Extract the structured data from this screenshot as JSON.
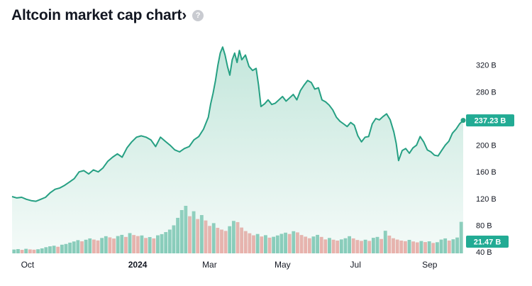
{
  "header": {
    "title": "Altcoin market cap chart›",
    "help_icon": "?"
  },
  "colors": {
    "line": "#26a083",
    "fill_top": "#b9e2d5",
    "fill_bottom": "#ffffff",
    "volume_up": "#7fc8b5",
    "volume_down": "#f0a9a5",
    "badge": "#22ab94"
  },
  "chart_data": {
    "type": "area",
    "title": "Altcoin market cap chart›",
    "x_labels": [
      {
        "text": "Oct",
        "bold": false,
        "date": "2023-10-01"
      },
      {
        "text": "2024",
        "bold": true,
        "date": "2024-01-01"
      },
      {
        "text": "Mar",
        "bold": false,
        "date": "2024-03-01"
      },
      {
        "text": "May",
        "bold": false,
        "date": "2024-05-01"
      },
      {
        "text": "Jul",
        "bold": false,
        "date": "2024-07-01"
      },
      {
        "text": "Sep",
        "bold": false,
        "date": "2024-09-01"
      }
    ],
    "y_ticks": [
      {
        "value": 320,
        "label": "320 B"
      },
      {
        "value": 280,
        "label": "280 B"
      },
      {
        "value": 240,
        "label": "240 B"
      },
      {
        "value": 200,
        "label": "200 B"
      },
      {
        "value": 160,
        "label": "160 B"
      },
      {
        "value": 120,
        "label": "120 B"
      },
      {
        "value": 80,
        "label": "80 B"
      },
      {
        "value": 40,
        "label": "40 B"
      }
    ],
    "y_range_billion_usd": [
      38,
      358
    ],
    "x_range": [
      "2023-09-18",
      "2024-09-29"
    ],
    "grid": false,
    "series": [
      {
        "values": [
          [
            "2023-09-18",
            123
          ],
          [
            "2023-09-22",
            121
          ],
          [
            "2023-09-26",
            122
          ],
          [
            "2023-09-30",
            119
          ],
          [
            "2023-10-04",
            117
          ],
          [
            "2023-10-08",
            116
          ],
          [
            "2023-10-12",
            119
          ],
          [
            "2023-10-16",
            122
          ],
          [
            "2023-10-20",
            129
          ],
          [
            "2023-10-24",
            134
          ],
          [
            "2023-10-28",
            136
          ],
          [
            "2023-11-01",
            140
          ],
          [
            "2023-11-05",
            145
          ],
          [
            "2023-11-09",
            150
          ],
          [
            "2023-11-13",
            160
          ],
          [
            "2023-11-17",
            162
          ],
          [
            "2023-11-21",
            157
          ],
          [
            "2023-11-25",
            163
          ],
          [
            "2023-11-29",
            160
          ],
          [
            "2023-12-03",
            166
          ],
          [
            "2023-12-07",
            176
          ],
          [
            "2023-12-11",
            182
          ],
          [
            "2023-12-15",
            187
          ],
          [
            "2023-12-19",
            182
          ],
          [
            "2023-12-23",
            196
          ],
          [
            "2023-12-27",
            205
          ],
          [
            "2023-12-31",
            212
          ],
          [
            "2024-01-04",
            214
          ],
          [
            "2024-01-08",
            212
          ],
          [
            "2024-01-12",
            208
          ],
          [
            "2024-01-16",
            198
          ],
          [
            "2024-01-20",
            212
          ],
          [
            "2024-01-24",
            206
          ],
          [
            "2024-01-28",
            200
          ],
          [
            "2024-02-01",
            193
          ],
          [
            "2024-02-05",
            190
          ],
          [
            "2024-02-09",
            195
          ],
          [
            "2024-02-13",
            198
          ],
          [
            "2024-02-17",
            208
          ],
          [
            "2024-02-21",
            213
          ],
          [
            "2024-02-25",
            224
          ],
          [
            "2024-02-29",
            242
          ],
          [
            "2024-03-02",
            262
          ],
          [
            "2024-03-04",
            278
          ],
          [
            "2024-03-06",
            297
          ],
          [
            "2024-03-08",
            320
          ],
          [
            "2024-03-10",
            338
          ],
          [
            "2024-03-12",
            347
          ],
          [
            "2024-03-14",
            335
          ],
          [
            "2024-03-16",
            318
          ],
          [
            "2024-03-18",
            305
          ],
          [
            "2024-03-20",
            328
          ],
          [
            "2024-03-22",
            338
          ],
          [
            "2024-03-24",
            324
          ],
          [
            "2024-03-26",
            342
          ],
          [
            "2024-03-28",
            328
          ],
          [
            "2024-03-31",
            335
          ],
          [
            "2024-04-03",
            318
          ],
          [
            "2024-04-06",
            312
          ],
          [
            "2024-04-09",
            315
          ],
          [
            "2024-04-11",
            290
          ],
          [
            "2024-04-13",
            258
          ],
          [
            "2024-04-16",
            262
          ],
          [
            "2024-04-19",
            268
          ],
          [
            "2024-04-22",
            261
          ],
          [
            "2024-04-25",
            263
          ],
          [
            "2024-04-28",
            268
          ],
          [
            "2024-05-01",
            273
          ],
          [
            "2024-05-04",
            266
          ],
          [
            "2024-05-07",
            271
          ],
          [
            "2024-05-10",
            276
          ],
          [
            "2024-05-13",
            268
          ],
          [
            "2024-05-16",
            282
          ],
          [
            "2024-05-19",
            290
          ],
          [
            "2024-05-22",
            297
          ],
          [
            "2024-05-25",
            294
          ],
          [
            "2024-05-28",
            284
          ],
          [
            "2024-05-31",
            286
          ],
          [
            "2024-06-03",
            268
          ],
          [
            "2024-06-06",
            265
          ],
          [
            "2024-06-09",
            260
          ],
          [
            "2024-06-12",
            253
          ],
          [
            "2024-06-15",
            242
          ],
          [
            "2024-06-18",
            236
          ],
          [
            "2024-06-21",
            232
          ],
          [
            "2024-06-24",
            228
          ],
          [
            "2024-06-27",
            234
          ],
          [
            "2024-06-30",
            230
          ],
          [
            "2024-07-03",
            214
          ],
          [
            "2024-07-06",
            205
          ],
          [
            "2024-07-09",
            212
          ],
          [
            "2024-07-12",
            213
          ],
          [
            "2024-07-15",
            232
          ],
          [
            "2024-07-18",
            240
          ],
          [
            "2024-07-21",
            238
          ],
          [
            "2024-07-24",
            243
          ],
          [
            "2024-07-27",
            247
          ],
          [
            "2024-07-30",
            238
          ],
          [
            "2024-08-02",
            220
          ],
          [
            "2024-08-04",
            203
          ],
          [
            "2024-08-06",
            177
          ],
          [
            "2024-08-09",
            192
          ],
          [
            "2024-08-12",
            195
          ],
          [
            "2024-08-15",
            188
          ],
          [
            "2024-08-18",
            196
          ],
          [
            "2024-08-21",
            200
          ],
          [
            "2024-08-24",
            213
          ],
          [
            "2024-08-27",
            205
          ],
          [
            "2024-08-30",
            193
          ],
          [
            "2024-09-02",
            190
          ],
          [
            "2024-09-05",
            185
          ],
          [
            "2024-09-08",
            184
          ],
          [
            "2024-09-11",
            192
          ],
          [
            "2024-09-14",
            200
          ],
          [
            "2024-09-17",
            206
          ],
          [
            "2024-09-20",
            218
          ],
          [
            "2024-09-23",
            224
          ],
          [
            "2024-09-26",
            232
          ],
          [
            "2024-09-29",
            237.23
          ]
        ]
      }
    ],
    "volume": {
      "values": [
        2.6,
        2.9,
        2.4,
        3.1,
        2.7,
        2.5,
        2.8,
        3.4,
        4.2,
        4.8,
        5.2,
        4.5,
        5.9,
        6.4,
        7.3,
        8.1,
        9.0,
        8.2,
        9.3,
        10.2,
        9.4,
        8.8,
        10.5,
        11.7,
        10.9,
        10.1,
        11.8,
        12.6,
        11.2,
        13.8,
        12.5,
        11.8,
        12.2,
        10.5,
        11.1,
        10.2,
        12.3,
        13.1,
        14.5,
        16.2,
        19.1,
        24.2,
        29.5,
        32.4,
        25.3,
        28.7,
        23.4,
        26.1,
        22.4,
        18.7,
        20.6,
        17.4,
        16.2,
        15.3,
        18.5,
        22.1,
        21.3,
        17.6,
        15.2,
        13.7,
        12.3,
        13.2,
        11.5,
        12.4,
        10.7,
        11.3,
        12.2,
        13.3,
        14.1,
        13.2,
        15.1,
        14.3,
        12.5,
        11.4,
        10.3,
        11.5,
        12.6,
        11.2,
        9.5,
        10.5,
        9.3,
        8.7,
        9.5,
        10.3,
        11.7,
        10.2,
        9.1,
        8.5,
        9.3,
        8.5,
        10.6,
        11.2,
        9.8,
        15.4,
        12.1,
        10.3,
        9.4,
        8.7,
        8.3,
        9.2,
        8.1,
        7.5,
        8.4,
        7.7,
        8.2,
        7.1,
        7.6,
        9.4,
        10.2,
        8.7,
        9.6,
        10.8,
        21.47
      ]
    },
    "last_price_label": "237.23 B",
    "last_volume_label": "21.47 B"
  }
}
